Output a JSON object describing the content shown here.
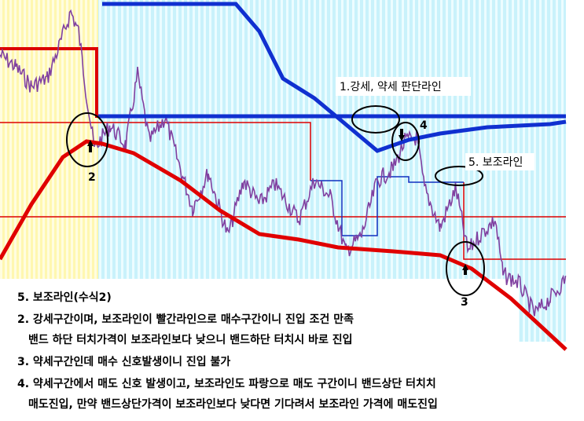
{
  "annotations": {
    "line_label": "1.강세, 약세 판단라인",
    "aux_label": "5. 보조라인",
    "point_2": "2",
    "point_3": "3",
    "point_4": "4"
  },
  "notes": [
    "5. 보조라인(수식2)",
    "2. 강세구간이며, 보조라인이 빨간라인으로 매수구간이니 진입 조건 만족",
    "밴드 하단 터치가격이 보조라인보다 낮으니 밴드하단 터치시 바로 진입",
    "3. 약세구간인데 매수 신호발생이니 진입 불가",
    "4. 약세구간에서 매도 신호 발생이고, 보조라인도 파랑으로 매도 구간이니 밴드상단 터치치",
    "매도진입, 만약 밴드상단가격이 보조라인보다 낮다면 기다려서 보조라인 가격에 매도진입"
  ]
}
